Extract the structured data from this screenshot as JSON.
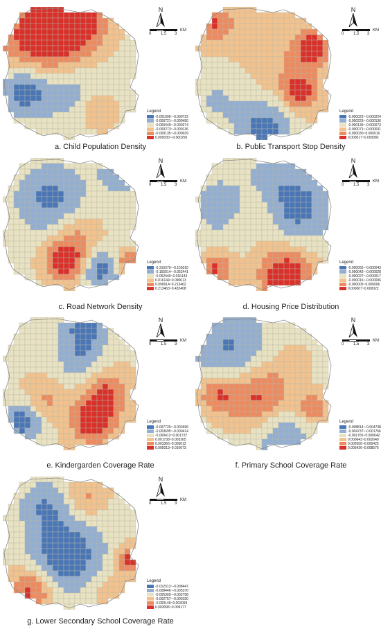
{
  "palette": [
    "#4a76b6",
    "#93aed0",
    "#e8e2c2",
    "#f2c28e",
    "#ec8a60",
    "#d9302a"
  ],
  "north_label": "N",
  "scale": {
    "t0": "0",
    "t1": "1.5",
    "t2": "3",
    "unit": "KM"
  },
  "legend_title": "Legend",
  "panels": [
    {
      "caption": "a. Child Population Density",
      "legend": [
        "-0.001006~-0.000722",
        "-0.000721~-0.000450",
        "-0.000449~-0.000274",
        "-0.000273~-0.000136",
        "-0.000135~-0.000029",
        "0.000030~-0.000250"
      ]
    },
    {
      "caption": "b. Public Transport Stop Density",
      "legend": [
        "-0.000022~-0.000224",
        "-0.000223~-0.000136",
        "-0.000135~-0.000073",
        "-0.000071~-0.000031",
        "-0.000030~0.000016",
        "0.000017~0.000082"
      ]
    },
    {
      "caption": "c. Road Network Density",
      "legend": [
        "-0.316370~-0.155015",
        "-0.155014~-0.052441",
        "-0.052440~0.016143",
        "0.016144~0.090613",
        "0.090614~0.213462",
        "0.213463~0.432408"
      ]
    },
    {
      "caption": "d. Housing Price Distribution",
      "legend": [
        "-0.000055~-0.000043",
        "-0.000042~-0.000028",
        "-0.000027~-0.000017",
        "-0.000016~-0.000006",
        "-0.000005~0.000006",
        "0.000007~0.000022"
      ]
    },
    {
      "caption": "e. Kindergarden Coverage Rate",
      "legend": [
        "-0.007720~-0.003696",
        "-0.003695~-0.000414",
        "-0.000413~0.001737",
        "0.001738~0.003365",
        "0.003366~0.005012",
        "0.005013~0.010673"
      ]
    },
    {
      "caption": "f. Primary School Coverage Rate",
      "legend": [
        "-0.008814~-0.004738",
        "-0.004737~-0.001766",
        "-0.001765~0.000642",
        "0.000643~0.002649",
        "0.002650~0.005425",
        "0.005426~0.008576"
      ]
    },
    {
      "caption": "g. Lower Secondary School Coverage Rate",
      "legend": [
        "-0.012313~-0.008447",
        "-0.008446~-0.005370",
        "-0.005369~-0.002758",
        "-0.002757~-0.000150",
        "-0.000149~0.003094",
        "0.003095~0.009177"
      ]
    }
  ]
}
